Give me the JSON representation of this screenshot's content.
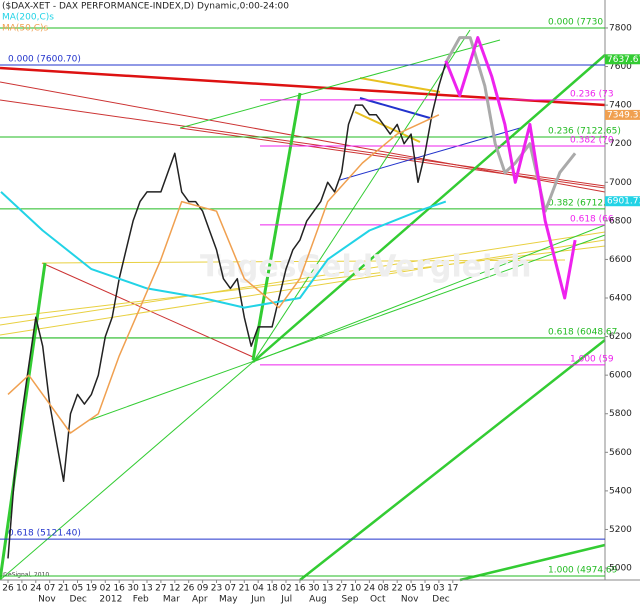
{
  "chart_data": {
    "type": "line",
    "title": "($DAX-XET - DAX PERFORMANCE-INDEX,D) Dynamic,0:00-24:00",
    "watermark": "TagesGeldVergleich",
    "copyright": "©eSignal, 2010",
    "xlim": [
      -1.15,
      85.9
    ],
    "ylim": [
      4938,
      7945
    ],
    "yticks": [
      5000,
      5200,
      5400,
      5600,
      5800,
      6000,
      6200,
      6400,
      6600,
      6800,
      7000,
      7200,
      7400,
      7600,
      7800
    ],
    "xticks": [
      {
        "value": 0,
        "label": "26"
      },
      {
        "value": 2,
        "label": "10"
      },
      {
        "value": 4,
        "label": "24"
      },
      {
        "value": 6,
        "label": "07"
      },
      {
        "value": 8,
        "label": "21"
      },
      {
        "value": 10,
        "label": "05"
      },
      {
        "value": 12,
        "label": "19"
      },
      {
        "value": 14,
        "label": "02"
      },
      {
        "value": 16,
        "label": "16"
      },
      {
        "value": 18,
        "label": "30"
      },
      {
        "value": 20,
        "label": "13"
      },
      {
        "value": 22,
        "label": "27"
      },
      {
        "value": 24,
        "label": "12"
      },
      {
        "value": 26,
        "label": "26"
      },
      {
        "value": 28,
        "label": "09"
      },
      {
        "value": 30,
        "label": "23"
      },
      {
        "value": 32,
        "label": "07"
      },
      {
        "value": 34,
        "label": "21"
      },
      {
        "value": 36,
        "label": "04"
      },
      {
        "value": 38,
        "label": "18"
      },
      {
        "value": 40,
        "label": "02"
      },
      {
        "value": 42,
        "label": "16"
      },
      {
        "value": 44,
        "label": "30"
      },
      {
        "value": 46,
        "label": "13"
      },
      {
        "value": 48,
        "label": "27"
      },
      {
        "value": 50,
        "label": "10"
      },
      {
        "value": 52,
        "label": "24"
      },
      {
        "value": 54,
        "label": "08"
      },
      {
        "value": 56,
        "label": "22"
      },
      {
        "value": 58,
        "label": "05"
      },
      {
        "value": 60,
        "label": "19"
      },
      {
        "value": 62,
        "label": "03"
      },
      {
        "value": 64,
        "label": "17"
      }
    ],
    "month_ticks": [
      {
        "value": 5.6,
        "label": "Nov"
      },
      {
        "value": 10.1,
        "label": "Dec"
      },
      {
        "value": 14.8,
        "label": "2012"
      },
      {
        "value": 19.1,
        "label": "Feb"
      },
      {
        "value": 23.5,
        "label": "Mar"
      },
      {
        "value": 27.6,
        "label": "Apr"
      },
      {
        "value": 31.7,
        "label": "May"
      },
      {
        "value": 36,
        "label": "Jun"
      },
      {
        "value": 40.1,
        "label": "Jul"
      },
      {
        "value": 44.6,
        "label": "Aug"
      },
      {
        "value": 49.2,
        "label": "Sep"
      },
      {
        "value": 53.2,
        "label": "Oct"
      },
      {
        "value": 57.8,
        "label": "Nov"
      },
      {
        "value": 62.3,
        "label": "Dec"
      }
    ],
    "series": [
      {
        "color": "#222222",
        "width": 1.5,
        "x": [
          0,
          1,
          2,
          3,
          4,
          5,
          6,
          7,
          8,
          9,
          10,
          11,
          12,
          13,
          14,
          15,
          16,
          17,
          18,
          19,
          20,
          21,
          22,
          23,
          24,
          25,
          26,
          27,
          28,
          29,
          30,
          31,
          32,
          33,
          34,
          35,
          36,
          37,
          38,
          39,
          40,
          41,
          42,
          43,
          44,
          45,
          46,
          47,
          48,
          49,
          50,
          51,
          52,
          53,
          54,
          55,
          56,
          57,
          58,
          59,
          60,
          61,
          62,
          63
        ],
        "values": [
          5050,
          5500,
          5800,
          6050,
          6300,
          6150,
          5850,
          5650,
          5450,
          5800,
          5900,
          5850,
          5900,
          6000,
          6200,
          6300,
          6500,
          6650,
          6800,
          6900,
          6950,
          6950,
          6950,
          7050,
          7150,
          6950,
          6900,
          6900,
          6850,
          6750,
          6650,
          6500,
          6450,
          6500,
          6300,
          6150,
          6250,
          6250,
          6250,
          6400,
          6550,
          6650,
          6700,
          6800,
          6850,
          6900,
          7000,
          6950,
          7050,
          7300,
          7400,
          7400,
          7350,
          7350,
          7300,
          7250,
          7300,
          7200,
          7250,
          7000,
          7150,
          7350,
          7500,
          7620
        ]
      },
      {
        "name": "MA(200,C)s",
        "color": "#22d3e6",
        "width": 2,
        "x": [
          -1,
          5,
          12,
          20,
          28,
          34,
          42,
          46,
          52,
          59,
          63
        ],
        "values": [
          6950,
          6750,
          6550,
          6450,
          6400,
          6350,
          6400,
          6600,
          6750,
          6850,
          6900
        ]
      },
      {
        "name": "MA(50,C)s",
        "color": "#f0a050",
        "width": 1.5,
        "x": [
          0,
          3,
          9,
          13,
          16,
          22,
          25,
          30,
          34,
          39,
          42,
          46,
          51,
          56,
          62
        ],
        "values": [
          5900,
          6000,
          5700,
          5800,
          6100,
          6600,
          6900,
          6850,
          6500,
          6350,
          6500,
          6900,
          7100,
          7250,
          7350
        ]
      },
      {
        "color": "#aaaaaa",
        "width": 3,
        "x": [
          63,
          65,
          66.5,
          68.6,
          70.1,
          71.5,
          73,
          75.1,
          77.3,
          79.4,
          81.6
        ],
        "values": [
          7620,
          7750,
          7750,
          7500,
          7200,
          7050,
          7100,
          7200,
          6850,
          7050,
          7150
        ]
      },
      {
        "color": "#ee22ee",
        "width": 3,
        "x": [
          63,
          65,
          67.6,
          69.6,
          71.5,
          73,
          75.1,
          77.3,
          80.1,
          81.6
        ],
        "values": [
          7630,
          7450,
          7750,
          7550,
          7300,
          7000,
          7300,
          6800,
          6400,
          6700
        ]
      }
    ],
    "levels": [
      {
        "text": "0.000 (7730",
        "value": 7800,
        "color": "#22bb22",
        "side": "right"
      },
      {
        "text": "0.000 (7600.70)",
        "value": 7608,
        "color": "#2233cc",
        "side": "left"
      },
      {
        "text": "0.236 (73",
        "value": 7427,
        "color": "#ee22ee",
        "side": "right2"
      },
      {
        "text": "0.236 (7122.65)",
        "value": 7235,
        "color": "#22bb22",
        "side": "right"
      },
      {
        "text": "0.382 (70",
        "value": 7188,
        "color": "#ee22ee",
        "side": "right2"
      },
      {
        "text": "0.382 (6712.17",
        "value": 6862,
        "color": "#22bb22",
        "side": "right"
      },
      {
        "text": "0.618 (66",
        "value": 6779,
        "color": "#ee22ee",
        "side": "right2"
      },
      {
        "text": "0.618 (6048.67",
        "value": 6193,
        "color": "#22bb22",
        "side": "right"
      },
      {
        "text": "1.000 (59",
        "value": 6053,
        "color": "#ee22ee",
        "side": "right2"
      },
      {
        "text": "1.000 (4974.69",
        "value": 4959,
        "color": "#22bb22",
        "side": "right"
      },
      {
        "text": "0.618 (5121.40)",
        "value": 5150,
        "color": "#2233cc",
        "side": "left"
      }
    ],
    "price_tags": [
      {
        "value": 7637.67,
        "color": "#33cc33"
      },
      {
        "value": 7349.31,
        "color": "#f0a050"
      },
      {
        "value": 6901.73,
        "color": "#22d3e6"
      }
    ]
  }
}
